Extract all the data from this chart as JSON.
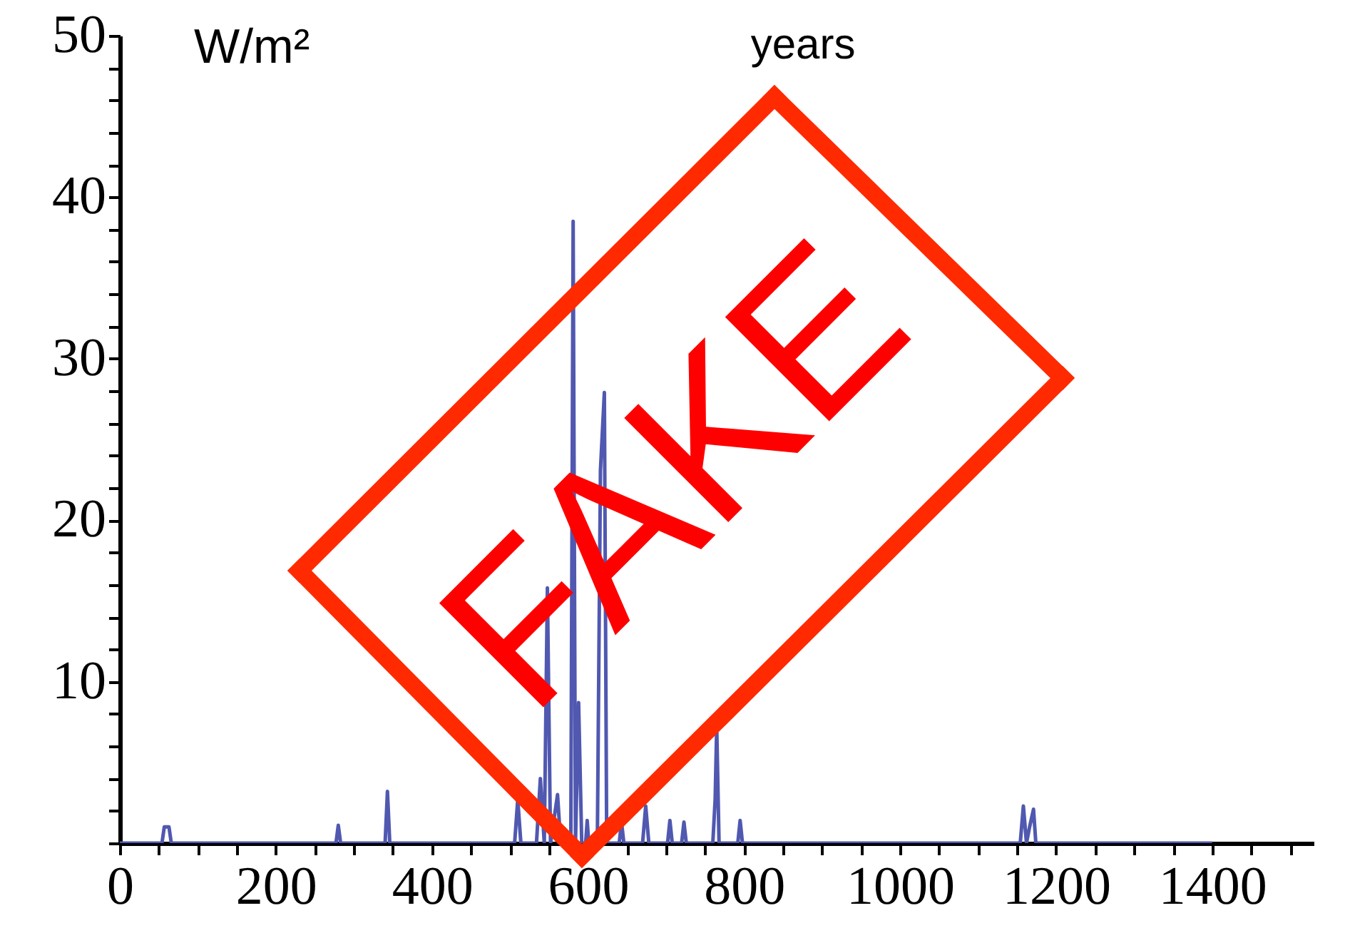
{
  "chart_data": {
    "type": "line",
    "xlabel": "years",
    "ylabel": "W/m²",
    "annotations": [
      "FAKE"
    ],
    "x": [
      0,
      54,
      57,
      63,
      66,
      277,
      280,
      283,
      340,
      343,
      346,
      506,
      510,
      514,
      534,
      539,
      544,
      548,
      552,
      561,
      565,
      578,
      581,
      584,
      588,
      592,
      597,
      599,
      601,
      612,
      616,
      621,
      624,
      640,
      643,
      646,
      670,
      674,
      678,
      702,
      705,
      708,
      720,
      723,
      726,
      760,
      763,
      765,
      768,
      792,
      795,
      798,
      1154,
      1158,
      1162,
      1166,
      1171,
      1174,
      1400
    ],
    "series": [
      {
        "color": "#5058b0",
        "values": [
          0,
          0,
          1,
          1,
          0,
          0,
          1.1,
          0,
          0,
          3.2,
          0,
          0,
          2.7,
          0,
          0,
          4,
          0,
          15.8,
          0,
          3,
          0,
          0,
          38.5,
          0,
          8.7,
          0,
          0,
          1.4,
          0,
          0,
          23.1,
          27.9,
          0,
          0,
          1.3,
          0,
          0,
          2.3,
          0,
          0,
          1.4,
          0,
          0,
          1.3,
          0,
          0,
          2.7,
          7.2,
          0,
          0,
          1.4,
          0,
          0,
          2.3,
          0,
          1,
          2.1,
          0,
          0
        ]
      }
    ],
    "xlim": [
      0,
      1530
    ],
    "ylim": [
      0,
      50
    ],
    "xticks": [
      0,
      {
        "value": 50,
        "label": null
      },
      {
        "value": 100,
        "label": null
      },
      {
        "value": 150,
        "label": null
      },
      200,
      {
        "value": 250,
        "label": null
      },
      {
        "value": 300,
        "label": null
      },
      {
        "value": 350,
        "label": null
      },
      400,
      {
        "value": 450,
        "label": null
      },
      {
        "value": 500,
        "label": null
      },
      {
        "value": 550,
        "label": null
      },
      600,
      {
        "value": 650,
        "label": null
      },
      {
        "value": 700,
        "label": null
      },
      {
        "value": 750,
        "label": null
      },
      800,
      {
        "value": 850,
        "label": null
      },
      {
        "value": 900,
        "label": null
      },
      {
        "value": 950,
        "label": null
      },
      1000,
      {
        "value": 1050,
        "label": null
      },
      {
        "value": 1100,
        "label": null
      },
      {
        "value": 1150,
        "label": null
      },
      1200,
      {
        "value": 1250,
        "label": null
      },
      {
        "value": 1300,
        "label": null
      },
      {
        "value": 1350,
        "label": null
      },
      1400,
      {
        "value": 1450,
        "label": null
      },
      {
        "value": 1500,
        "label": null
      }
    ],
    "yticks": [
      {
        "value": 0,
        "label": null
      },
      {
        "value": 2,
        "label": null
      },
      {
        "value": 4,
        "label": null
      },
      {
        "value": 6,
        "label": null
      },
      {
        "value": 8,
        "label": null
      },
      10,
      {
        "value": 12,
        "label": null
      },
      {
        "value": 14,
        "label": null
      },
      {
        "value": 16,
        "label": null
      },
      {
        "value": 18,
        "label": null
      },
      20,
      {
        "value": 22,
        "label": null
      },
      {
        "value": 24,
        "label": null
      },
      {
        "value": 26,
        "label": null
      },
      {
        "value": 28,
        "label": null
      },
      30,
      {
        "value": 32,
        "label": null
      },
      {
        "value": 34,
        "label": null
      },
      {
        "value": 36,
        "label": null
      },
      {
        "value": 38,
        "label": null
      },
      40,
      {
        "value": 42,
        "label": null
      },
      {
        "value": 44,
        "label": null
      },
      {
        "value": 46,
        "label": null
      },
      {
        "value": 48,
        "label": null
      },
      50
    ],
    "grid": false,
    "marker": "none",
    "line_style": "solid"
  }
}
